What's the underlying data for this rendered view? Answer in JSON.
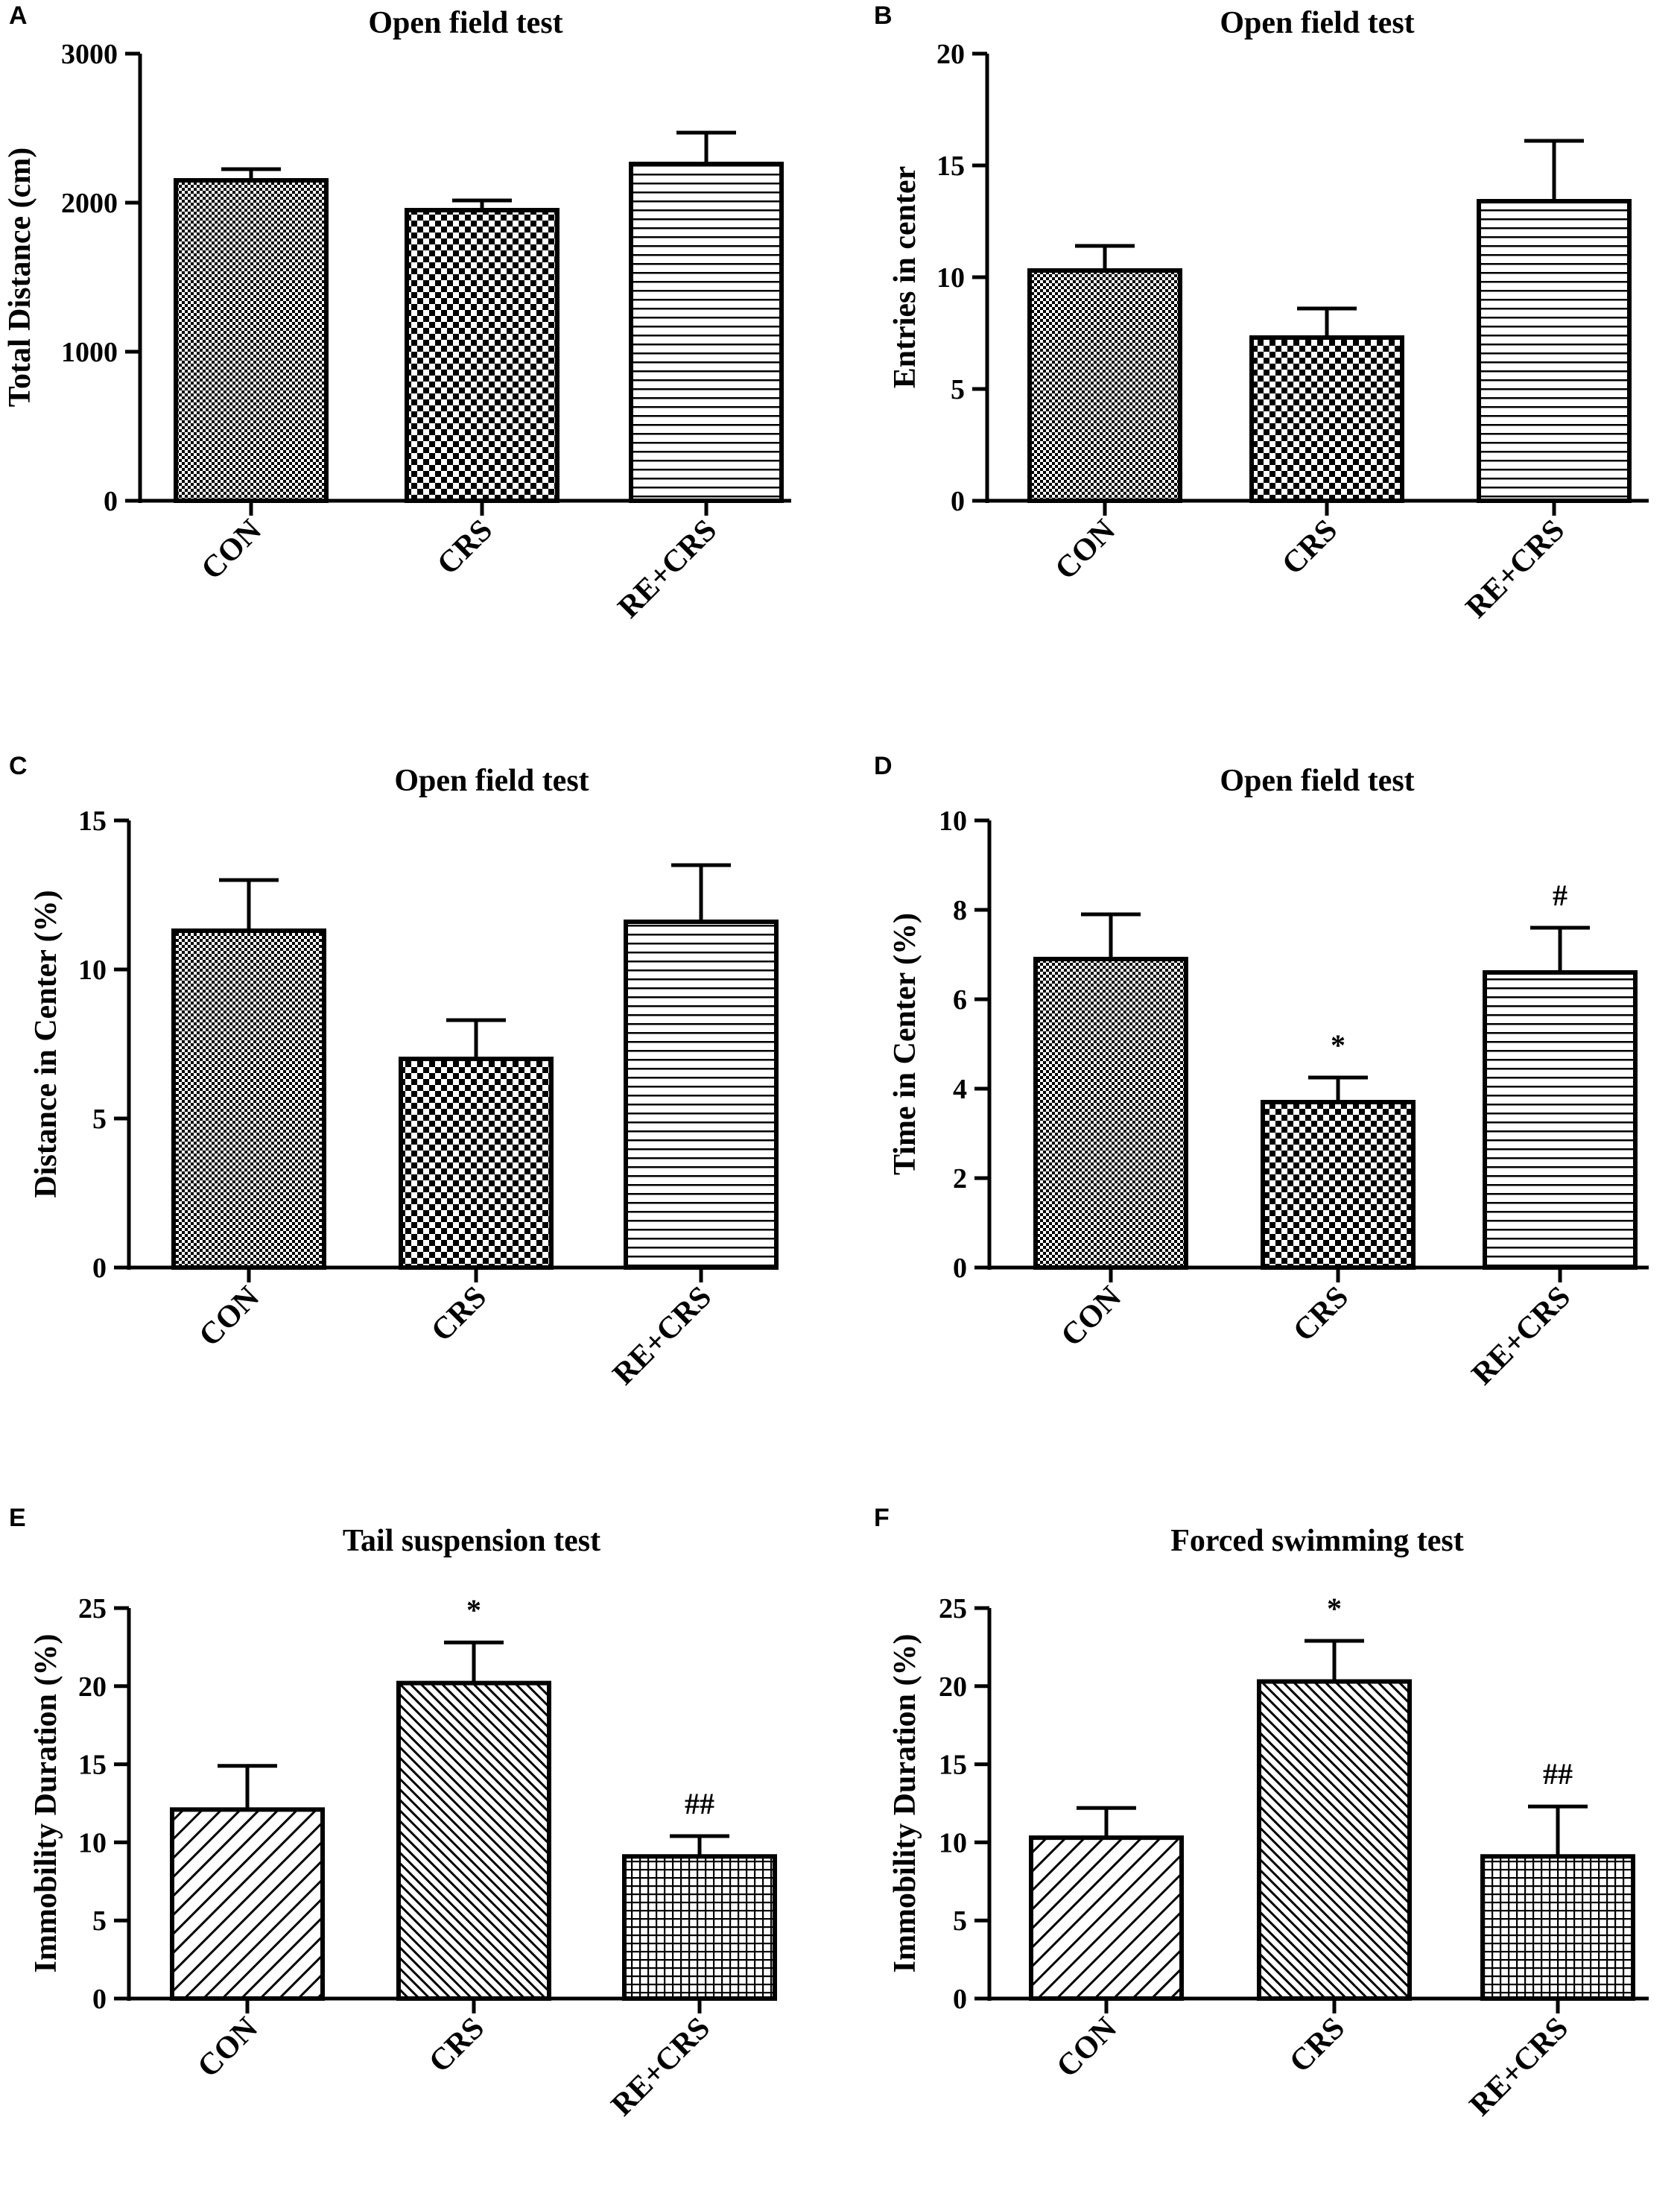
{
  "chart_data": [
    {
      "panel": "A",
      "type": "bar",
      "title": "Open field test",
      "ylabel": "Total Distance (cm)",
      "xlabel": "",
      "categories": [
        "CON",
        "CRS",
        "RE+CRS"
      ],
      "values": [
        2150,
        1950,
        2260
      ],
      "errors": [
        75,
        65,
        210
      ],
      "patterns": [
        "checker-fine",
        "checker-coarse",
        "hlines"
      ],
      "annotations": [
        "",
        "",
        ""
      ],
      "ylim": [
        0,
        3000
      ],
      "yticks": [
        0,
        1000,
        2000,
        3000
      ],
      "grid": false
    },
    {
      "panel": "B",
      "type": "bar",
      "title": "Open field test",
      "ylabel": "Entries in center",
      "xlabel": "",
      "categories": [
        "CON",
        "CRS",
        "RE+CRS"
      ],
      "values": [
        10.3,
        7.3,
        13.4
      ],
      "errors": [
        1.1,
        1.3,
        2.7
      ],
      "patterns": [
        "checker-fine",
        "checker-coarse",
        "hlines"
      ],
      "annotations": [
        "",
        "",
        ""
      ],
      "ylim": [
        0,
        20
      ],
      "yticks": [
        0,
        5,
        10,
        15,
        20
      ],
      "grid": false
    },
    {
      "panel": "C",
      "type": "bar",
      "title": "Open field test",
      "ylabel": "Distance in Center (%)",
      "xlabel": "",
      "categories": [
        "CON",
        "CRS",
        "RE+CRS"
      ],
      "values": [
        11.3,
        7.0,
        11.6
      ],
      "errors": [
        1.7,
        1.3,
        1.9
      ],
      "patterns": [
        "checker-fine",
        "checker-coarse",
        "hlines"
      ],
      "annotations": [
        "",
        "",
        ""
      ],
      "ylim": [
        0,
        15
      ],
      "yticks": [
        0,
        5,
        10,
        15
      ],
      "grid": false
    },
    {
      "panel": "D",
      "type": "bar",
      "title": "Open field test",
      "ylabel": "Time in Center (%)",
      "xlabel": "",
      "categories": [
        "CON",
        "CRS",
        "RE+CRS"
      ],
      "values": [
        6.9,
        3.7,
        6.6
      ],
      "errors": [
        1.0,
        0.55,
        1.0
      ],
      "patterns": [
        "checker-fine",
        "checker-coarse",
        "hlines"
      ],
      "annotations": [
        "",
        "*",
        "#"
      ],
      "ylim": [
        0,
        10
      ],
      "yticks": [
        0,
        2,
        4,
        6,
        8,
        10
      ],
      "grid": false
    },
    {
      "panel": "E",
      "type": "bar",
      "title": "Tail suspension test",
      "ylabel": "Immobility Duration (%)",
      "xlabel": "",
      "categories": [
        "CON",
        "CRS",
        "RE+CRS"
      ],
      "values": [
        12.1,
        20.2,
        9.1
      ],
      "errors": [
        2.8,
        2.6,
        1.3
      ],
      "patterns": [
        "diag-wide",
        "diag-dense",
        "grid"
      ],
      "annotations": [
        "",
        "*",
        "##"
      ],
      "ylim": [
        0,
        25
      ],
      "yticks": [
        0,
        5,
        10,
        15,
        20,
        25
      ],
      "grid": false
    },
    {
      "panel": "F",
      "type": "bar",
      "title": "Forced swimming test",
      "ylabel": "Immobility Duration (%)",
      "xlabel": "",
      "categories": [
        "CON",
        "CRS",
        "RE+CRS"
      ],
      "values": [
        10.3,
        20.3,
        9.1
      ],
      "errors": [
        1.9,
        2.6,
        3.2
      ],
      "patterns": [
        "diag-wide",
        "diag-dense",
        "grid"
      ],
      "annotations": [
        "",
        "*",
        "##"
      ],
      "ylim": [
        0,
        25
      ],
      "yticks": [
        0,
        5,
        10,
        15,
        20,
        25
      ],
      "grid": false
    }
  ]
}
